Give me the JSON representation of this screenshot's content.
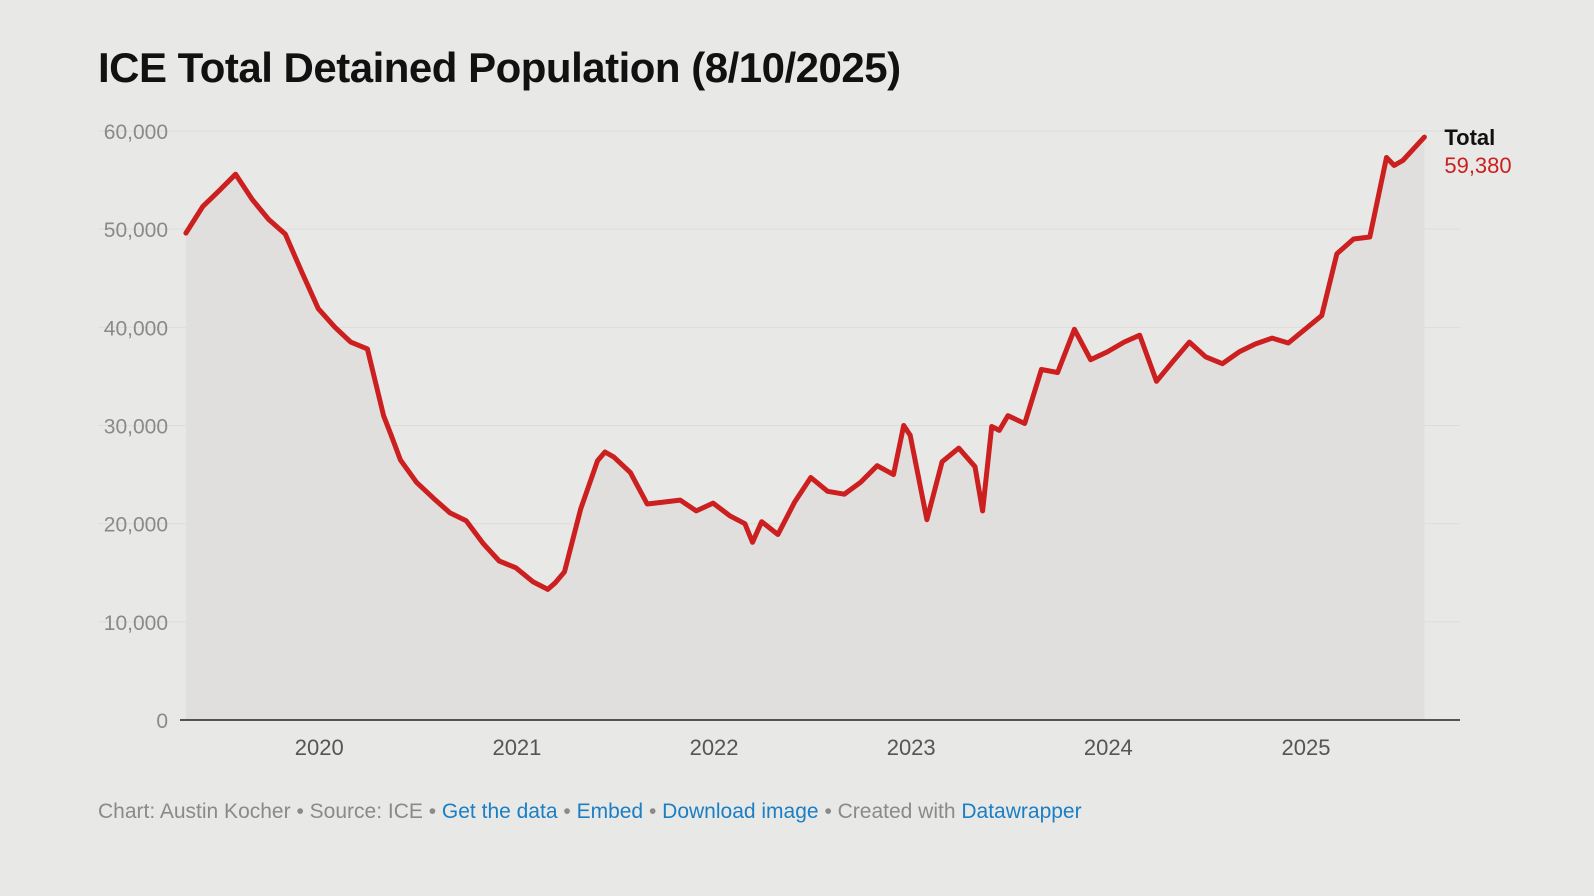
{
  "title": "ICE Total Detained Population (8/10/2025)",
  "footer": {
    "credit": "Chart: Austin Kocher",
    "source": "Source: ICE",
    "get_data": "Get the data",
    "embed": "Embed",
    "download": "Download image",
    "created_with": "Created with",
    "tool": "Datawrapper",
    "sep": "•"
  },
  "colors": {
    "line": "#cc1f1f",
    "area": "#e0dfdd",
    "background": "#e8e8e6",
    "link": "#1a7fc4"
  },
  "chart_data": {
    "type": "area",
    "title": "ICE Total Detained Population (8/10/2025)",
    "ylim": [
      0,
      60000
    ],
    "yticks": [
      0,
      10000,
      20000,
      30000,
      40000,
      50000,
      60000
    ],
    "ytick_labels": [
      "0",
      "10,000",
      "20,000",
      "30,000",
      "40,000",
      "50,000",
      "60,000"
    ],
    "xlim": [
      "2019-04-20",
      "2025-10-15"
    ],
    "xticks": [
      "2020-01-01",
      "2021-01-01",
      "2022-01-01",
      "2023-01-01",
      "2024-01-01",
      "2025-01-01"
    ],
    "xtick_labels": [
      "2020",
      "2021",
      "2022",
      "2023",
      "2024",
      "2025"
    ],
    "grid": true,
    "series": [
      {
        "name": "Total",
        "last_label": "59,380",
        "color": "#cc1f1f",
        "x": [
          "2019-05-01",
          "2019-06-01",
          "2019-07-01",
          "2019-08-01",
          "2019-09-01",
          "2019-10-01",
          "2019-11-01",
          "2019-12-01",
          "2020-01-01",
          "2020-02-01",
          "2020-03-01",
          "2020-04-01",
          "2020-05-01",
          "2020-05-15",
          "2020-06-01",
          "2020-07-01",
          "2020-08-01",
          "2020-09-01",
          "2020-10-01",
          "2020-11-01",
          "2020-12-01",
          "2021-01-01",
          "2021-02-01",
          "2021-03-01",
          "2021-03-15",
          "2021-04-01",
          "2021-05-01",
          "2021-06-01",
          "2021-06-15",
          "2021-07-01",
          "2021-08-01",
          "2021-09-01",
          "2021-10-01",
          "2021-11-01",
          "2021-12-01",
          "2022-01-01",
          "2022-02-01",
          "2022-03-01",
          "2022-03-15",
          "2022-04-01",
          "2022-05-01",
          "2022-06-01",
          "2022-07-01",
          "2022-08-01",
          "2022-09-01",
          "2022-10-01",
          "2022-11-01",
          "2022-12-01",
          "2022-12-20",
          "2023-01-01",
          "2023-02-01",
          "2023-03-01",
          "2023-04-01",
          "2023-05-01",
          "2023-05-15",
          "2023-06-01",
          "2023-06-15",
          "2023-07-01",
          "2023-08-01",
          "2023-09-01",
          "2023-10-01",
          "2023-11-01",
          "2023-12-01",
          "2024-01-01",
          "2024-02-01",
          "2024-03-01",
          "2024-04-01",
          "2024-05-01",
          "2024-06-01",
          "2024-07-01",
          "2024-08-01",
          "2024-09-01",
          "2024-10-01",
          "2024-11-01",
          "2024-12-01",
          "2025-01-01",
          "2025-02-01",
          "2025-03-01",
          "2025-04-01",
          "2025-05-01",
          "2025-06-01",
          "2025-06-15",
          "2025-07-01",
          "2025-08-10"
        ],
        "values": [
          49600,
          52300,
          53900,
          55600,
          53000,
          51000,
          49500,
          45700,
          41900,
          40000,
          38500,
          37800,
          31000,
          29000,
          26500,
          24200,
          22600,
          21100,
          20300,
          18000,
          16200,
          15500,
          14100,
          13300,
          14000,
          15100,
          21500,
          26400,
          27300,
          26800,
          25200,
          22000,
          22200,
          22400,
          21300,
          22100,
          20800,
          20000,
          18100,
          20200,
          18900,
          22200,
          24700,
          23300,
          23000,
          24200,
          25900,
          25000,
          30000,
          29000,
          20400,
          26300,
          27700,
          25800,
          21300,
          29900,
          29500,
          31000,
          30200,
          35700,
          35400,
          39800,
          36700,
          37500,
          38500,
          39200,
          34500,
          36500,
          38500,
          37000,
          36300,
          37500,
          38300,
          38900,
          38400,
          39800,
          41200,
          47500,
          49000,
          49200,
          57300,
          56500,
          57000,
          59380
        ]
      }
    ]
  }
}
